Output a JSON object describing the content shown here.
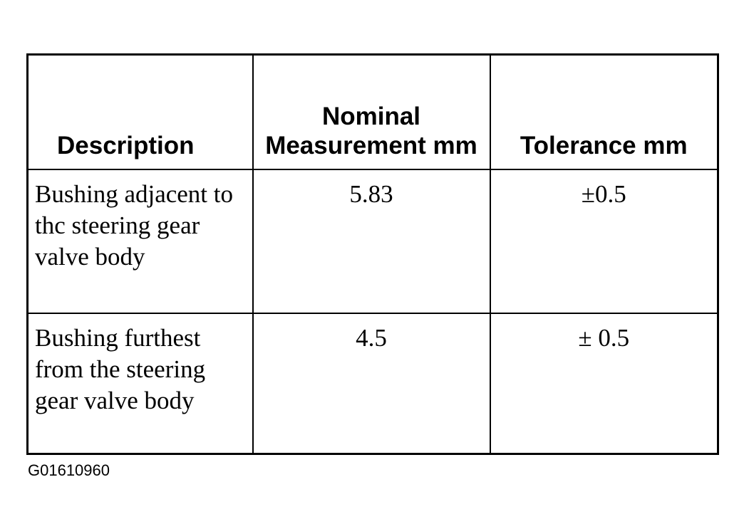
{
  "table": {
    "headers": {
      "description": "Description",
      "nominal": "Nominal Measurement mm",
      "tolerance": "Tolerance mm"
    },
    "rows": [
      {
        "description": "Bushing adjacent to thc steering gear valve body",
        "nominal": "5.83",
        "tolerance": "±0.5"
      },
      {
        "description": "Bushing furthest from the steering gear valve body",
        "nominal": "4.5",
        "tolerance": "± 0.5"
      }
    ]
  },
  "figure_id": "G01610960"
}
